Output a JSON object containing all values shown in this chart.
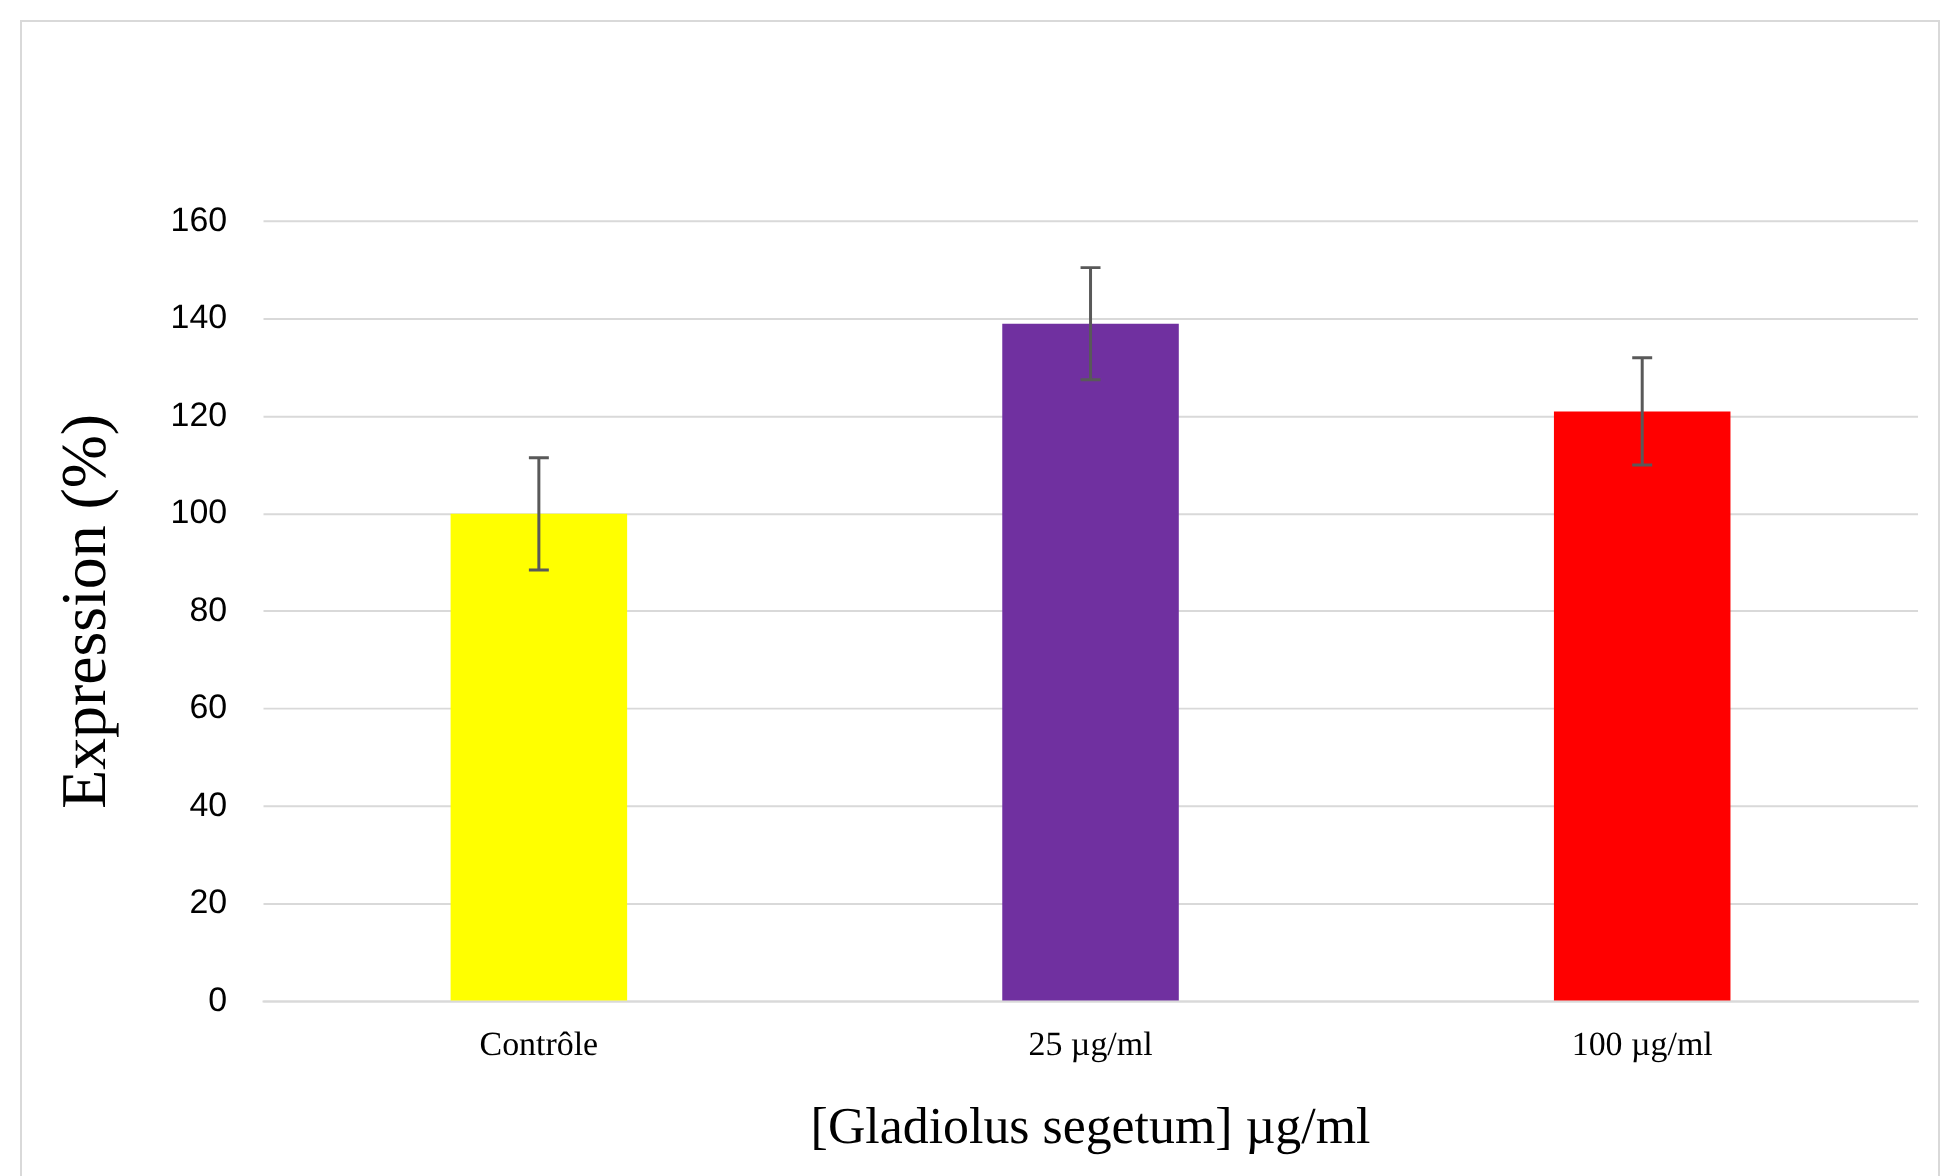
{
  "chart_data": {
    "type": "bar",
    "xlabel": "[Gladiolus segetum] µg/ml",
    "ylabel": "Expression (%)",
    "categories": [
      "Contrôle",
      "25 µg/ml",
      "100 µg/ml"
    ],
    "values": [
      100,
      139,
      121
    ],
    "colors": [
      "#ffff00",
      "#7030a0",
      "#ff0000"
    ],
    "errors": [
      11.5,
      11.5,
      11
    ],
    "ylim": [
      0,
      160
    ],
    "yticks": [
      0,
      20,
      40,
      60,
      80,
      100,
      120,
      140,
      160
    ],
    "grid": "y",
    "legend": false
  }
}
